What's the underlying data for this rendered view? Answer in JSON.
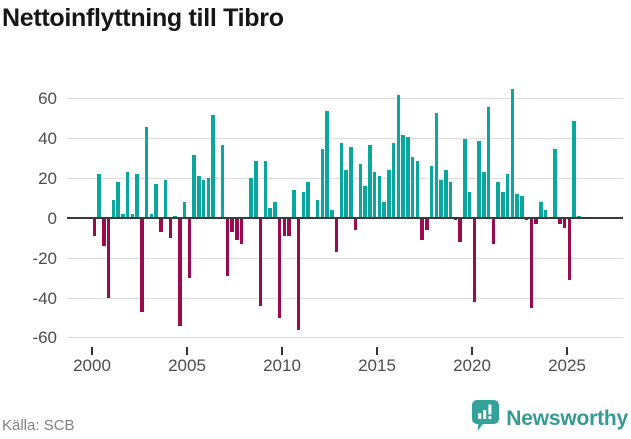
{
  "title": "Nettoinflyttning till Tibro",
  "source": "Källa: SCB",
  "brand": {
    "name": "Newsworthy",
    "color": "#359a93",
    "icon": "newsworthy-speech-bubble-chart-icon"
  },
  "colors": {
    "positive_bar": "#0ba69e",
    "negative_bar": "#9b0a4e",
    "grid": "#dedede",
    "zero_line": "#3a3a3a",
    "axis_text": "#4d4d4d"
  },
  "chart_data": {
    "type": "bar",
    "title": "Nettoinflyttning till Tibro",
    "xlabel": "",
    "ylabel": "",
    "period": "quarterly",
    "x_start_year": 2000,
    "x_tick_labels": [
      "2000",
      "2005",
      "2010",
      "2015",
      "2020",
      "2025"
    ],
    "y_ticks": [
      60,
      40,
      20,
      0,
      -20,
      -40,
      -60
    ],
    "y_tick_labels": [
      "60",
      "40",
      "20",
      "0",
      "-20",
      "-40",
      "-60"
    ],
    "ylim": [
      -62,
      66
    ],
    "grid": true,
    "legend": "none",
    "positive_color": "#0ba69e",
    "negative_color": "#9b0a4e",
    "values": [
      -9,
      22,
      -14,
      -40,
      9,
      18,
      2,
      23,
      2,
      22,
      -47,
      46,
      2,
      17,
      -7,
      19,
      -10,
      1,
      -54,
      8,
      -30,
      32,
      21,
      19,
      20,
      52,
      0,
      37,
      -29,
      -7,
      -11,
      -13,
      0,
      20,
      29,
      -44,
      29,
      5,
      8,
      -50,
      -9,
      -9,
      14,
      -56,
      13,
      18,
      0,
      9,
      35,
      54,
      4,
      -17,
      38,
      24,
      36,
      -6,
      27,
      16,
      37,
      23,
      21,
      8,
      24,
      38,
      62,
      42,
      41,
      31,
      29,
      -11,
      -6,
      26,
      53,
      19,
      24,
      18,
      -1,
      -12,
      40,
      13,
      -42,
      39,
      23,
      56,
      -13,
      18,
      13,
      22,
      65,
      12,
      11,
      -1,
      -45,
      -3,
      8,
      4,
      0,
      35,
      -3,
      -5,
      -31,
      49,
      1
    ]
  }
}
